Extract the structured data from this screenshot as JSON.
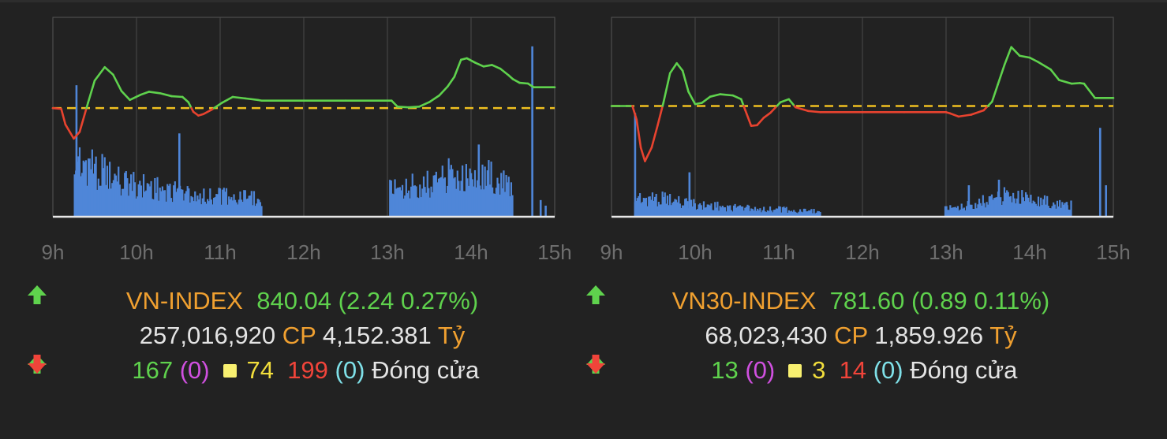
{
  "time_labels": [
    "9h",
    "10h",
    "11h",
    "12h",
    "13h",
    "14h",
    "15h"
  ],
  "colors": {
    "background": "#222222",
    "plot_bg": "#222222",
    "grid": "#4a4a4a",
    "up": "#5fd24d",
    "down": "#e8432f",
    "reference": "#f0c020",
    "volume": "#4f86d8",
    "index_name": "#f0a030"
  },
  "panels": [
    {
      "name": "VN-INDEX",
      "value": "840.04",
      "change": "(2.24 0.27%)",
      "volume": "257,016,920",
      "cp_label": "CP",
      "turnover": "4,152.381",
      "unit": "Tỷ",
      "advancers": "167",
      "advancers_ceiling": "(0)",
      "unchanged": "74",
      "decliners": "199",
      "decliners_floor": "(0)",
      "status": "Đóng cửa"
    },
    {
      "name": "VN30-INDEX",
      "value": "781.60",
      "change": "(0.89 0.11%)",
      "volume": "68,023,430",
      "cp_label": "CP",
      "turnover": "1,859.926",
      "unit": "Tỷ",
      "advancers": "13",
      "advancers_ceiling": "(0)",
      "unchanged": "3",
      "decliners": "14",
      "decliners_floor": "(0)",
      "status": "Đóng cửa"
    }
  ],
  "chart_data": [
    {
      "type": "line",
      "x_unit": "hour",
      "x_ticks": [
        "9h",
        "10h",
        "11h",
        "12h",
        "13h",
        "14h",
        "15h"
      ],
      "xlim": [
        9,
        15
      ],
      "reference": 837.8,
      "ylim": [
        825,
        850
      ],
      "series": [
        {
          "points": [
            [
              9.0,
              837.8
            ],
            [
              9.1,
              837.7
            ],
            [
              9.15,
              835.6
            ],
            [
              9.25,
              833.7
            ],
            [
              9.32,
              834.6
            ],
            [
              9.42,
              838.5
            ],
            [
              9.5,
              841.5
            ],
            [
              9.62,
              843.3
            ],
            [
              9.72,
              842.3
            ],
            [
              9.82,
              840.1
            ],
            [
              9.92,
              838.9
            ],
            [
              10.05,
              839.6
            ],
            [
              10.15,
              840.0
            ],
            [
              10.28,
              839.8
            ],
            [
              10.42,
              839.4
            ],
            [
              10.55,
              839.3
            ],
            [
              10.62,
              838.6
            ],
            [
              10.68,
              837.3
            ],
            [
              10.74,
              836.8
            ],
            [
              10.8,
              837.0
            ],
            [
              10.9,
              837.6
            ],
            [
              11.02,
              838.5
            ],
            [
              11.15,
              839.3
            ],
            [
              11.3,
              839.1
            ],
            [
              11.45,
              838.9
            ],
            [
              11.5,
              838.8
            ],
            [
              12.0,
              838.8
            ],
            [
              12.5,
              838.8
            ],
            [
              13.05,
              838.8
            ],
            [
              13.12,
              838.0
            ],
            [
              13.25,
              837.9
            ],
            [
              13.38,
              838.0
            ],
            [
              13.5,
              838.6
            ],
            [
              13.62,
              839.5
            ],
            [
              13.72,
              840.7
            ],
            [
              13.8,
              842.0
            ],
            [
              13.88,
              844.3
            ],
            [
              13.95,
              844.5
            ],
            [
              14.05,
              843.9
            ],
            [
              14.15,
              843.4
            ],
            [
              14.25,
              843.6
            ],
            [
              14.35,
              843.1
            ],
            [
              14.45,
              842.2
            ],
            [
              14.5,
              841.7
            ],
            [
              14.58,
              841.2
            ],
            [
              14.68,
              841.1
            ],
            [
              14.75,
              840.6
            ],
            [
              15.0,
              840.6
            ]
          ]
        }
      ],
      "volume_bars": {
        "morning": {
          "start": 9.25,
          "end": 11.5,
          "levels": [
            0.32,
            0.3,
            0.26,
            0.22,
            0.2,
            0.18,
            0.17,
            0.16,
            0.15,
            0.14,
            0.13,
            0.12,
            0.11,
            0.11,
            0.12,
            0.1,
            0.1,
            0.09
          ]
        },
        "afternoon": {
          "start": 13.02,
          "end": 14.5,
          "levels": [
            0.14,
            0.15,
            0.17,
            0.16,
            0.18,
            0.2,
            0.23,
            0.22,
            0.2,
            0.24,
            0.22,
            0.2,
            0.19
          ]
        },
        "spikes": [
          {
            "x": 9.27,
            "v": 0.71
          },
          {
            "x": 10.5,
            "v": 0.45
          },
          {
            "x": 13.03,
            "v": 0.18
          },
          {
            "x": 14.08,
            "v": 0.39
          },
          {
            "x": 14.72,
            "v": 0.92
          },
          {
            "x": 14.82,
            "v": 0.09
          },
          {
            "x": 14.88,
            "v": 0.06
          }
        ]
      }
    },
    {
      "type": "line",
      "x_unit": "hour",
      "x_ticks": [
        "9h",
        "10h",
        "11h",
        "12h",
        "13h",
        "14h",
        "15h"
      ],
      "xlim": [
        9,
        15
      ],
      "reference": 780.7,
      "ylim": [
        765,
        795
      ],
      "series": [
        {
          "points": [
            [
              9.0,
              780.7
            ],
            [
              9.25,
              780.7
            ],
            [
              9.3,
              778.5
            ],
            [
              9.35,
              774.0
            ],
            [
              9.4,
              771.8
            ],
            [
              9.48,
              774.0
            ],
            [
              9.55,
              777.5
            ],
            [
              9.62,
              781.2
            ],
            [
              9.7,
              786.0
            ],
            [
              9.78,
              787.6
            ],
            [
              9.85,
              786.4
            ],
            [
              9.92,
              783.0
            ],
            [
              10.0,
              781.0
            ],
            [
              10.08,
              781.2
            ],
            [
              10.18,
              782.2
            ],
            [
              10.3,
              782.6
            ],
            [
              10.45,
              782.4
            ],
            [
              10.55,
              781.8
            ],
            [
              10.6,
              780.0
            ],
            [
              10.67,
              777.5
            ],
            [
              10.74,
              777.6
            ],
            [
              10.82,
              778.8
            ],
            [
              10.9,
              779.6
            ],
            [
              11.02,
              781.3
            ],
            [
              11.12,
              781.8
            ],
            [
              11.2,
              780.5
            ],
            [
              11.35,
              779.9
            ],
            [
              11.5,
              779.7
            ],
            [
              12.0,
              779.7
            ],
            [
              12.5,
              779.7
            ],
            [
              13.0,
              779.7
            ],
            [
              13.05,
              779.5
            ],
            [
              13.15,
              779.0
            ],
            [
              13.3,
              779.3
            ],
            [
              13.45,
              780.0
            ],
            [
              13.55,
              781.4
            ],
            [
              13.62,
              784.2
            ],
            [
              13.7,
              787.4
            ],
            [
              13.78,
              790.2
            ],
            [
              13.88,
              788.8
            ],
            [
              14.0,
              788.5
            ],
            [
              14.1,
              787.8
            ],
            [
              14.25,
              786.6
            ],
            [
              14.35,
              784.9
            ],
            [
              14.5,
              784.3
            ],
            [
              14.6,
              784.4
            ],
            [
              14.65,
              784.3
            ],
            [
              14.78,
              782.0
            ],
            [
              15.0,
              782.0
            ]
          ]
        }
      ],
      "volume_bars": {
        "morning": {
          "start": 9.27,
          "end": 11.5,
          "levels": [
            0.11,
            0.1,
            0.1,
            0.09,
            0.08,
            0.07,
            0.06,
            0.06,
            0.05,
            0.05,
            0.05,
            0.04,
            0.04,
            0.04,
            0.03,
            0.03,
            0.03
          ]
        },
        "afternoon": {
          "start": 12.98,
          "end": 14.5,
          "levels": [
            0.04,
            0.05,
            0.06,
            0.07,
            0.09,
            0.1,
            0.12,
            0.11,
            0.1,
            0.09,
            0.08,
            0.07,
            0.06
          ]
        },
        "spikes": [
          {
            "x": 9.27,
            "v": 0.56
          },
          {
            "x": 9.92,
            "v": 0.24
          },
          {
            "x": 13.26,
            "v": 0.17
          },
          {
            "x": 13.62,
            "v": 0.2
          },
          {
            "x": 14.43,
            "v": 0.08
          },
          {
            "x": 14.83,
            "v": 0.48
          },
          {
            "x": 14.9,
            "v": 0.17
          }
        ]
      }
    }
  ]
}
